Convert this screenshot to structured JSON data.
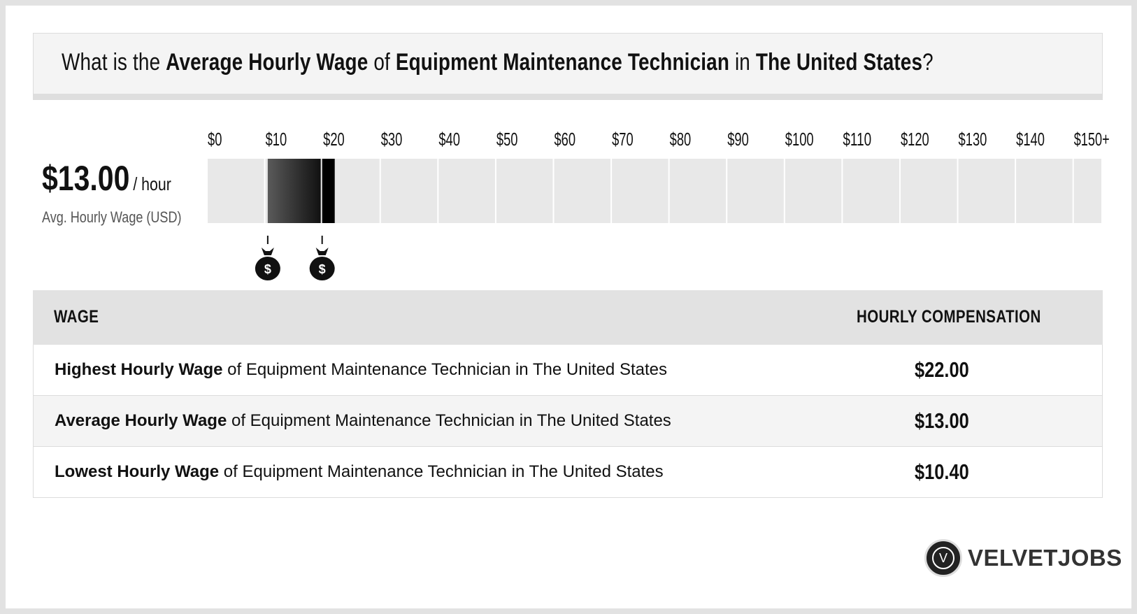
{
  "title": {
    "part1": "What is the ",
    "bold1": "Average Hourly Wage",
    "part2": " of ",
    "bold2": "Equipment Maintenance Technician",
    "part3": " in ",
    "bold3": "The United States",
    "part4": "?"
  },
  "summary": {
    "value": "$13.00",
    "unit": "/ hour",
    "caption": "Avg. Hourly Wage (USD)"
  },
  "chart_data": {
    "type": "bar",
    "tick_labels": [
      "$0",
      "$10",
      "$20",
      "$30",
      "$40",
      "$50",
      "$60",
      "$70",
      "$80",
      "$90",
      "$100",
      "$110",
      "$120",
      "$130",
      "$140",
      "$150+"
    ],
    "xlim": [
      0,
      150
    ],
    "range": {
      "low": 10.4,
      "average": 13.0,
      "high": 22.0
    },
    "markers": [
      10.4,
      22.0
    ],
    "marker_icon": "money-bag-icon",
    "colors": {
      "track": "#e8e8e8",
      "range_start": "#5a5a5a",
      "range_end": "#111111",
      "cap": "#000000"
    }
  },
  "table": {
    "header_left": "WAGE",
    "header_right": "HOURLY COMPENSATION",
    "rows": [
      {
        "bold": "Highest Hourly Wage",
        "rest": " of Equipment Maintenance Technician in The United States",
        "value": "$22.00"
      },
      {
        "bold": "Average Hourly Wage",
        "rest": " of Equipment Maintenance Technician in The United States",
        "value": "$13.00"
      },
      {
        "bold": "Lowest Hourly Wage",
        "rest": " of Equipment Maintenance Technician in The United States",
        "value": "$10.40"
      }
    ]
  },
  "brand": {
    "logo_letter": "V",
    "name": "VELVETJOBS"
  }
}
